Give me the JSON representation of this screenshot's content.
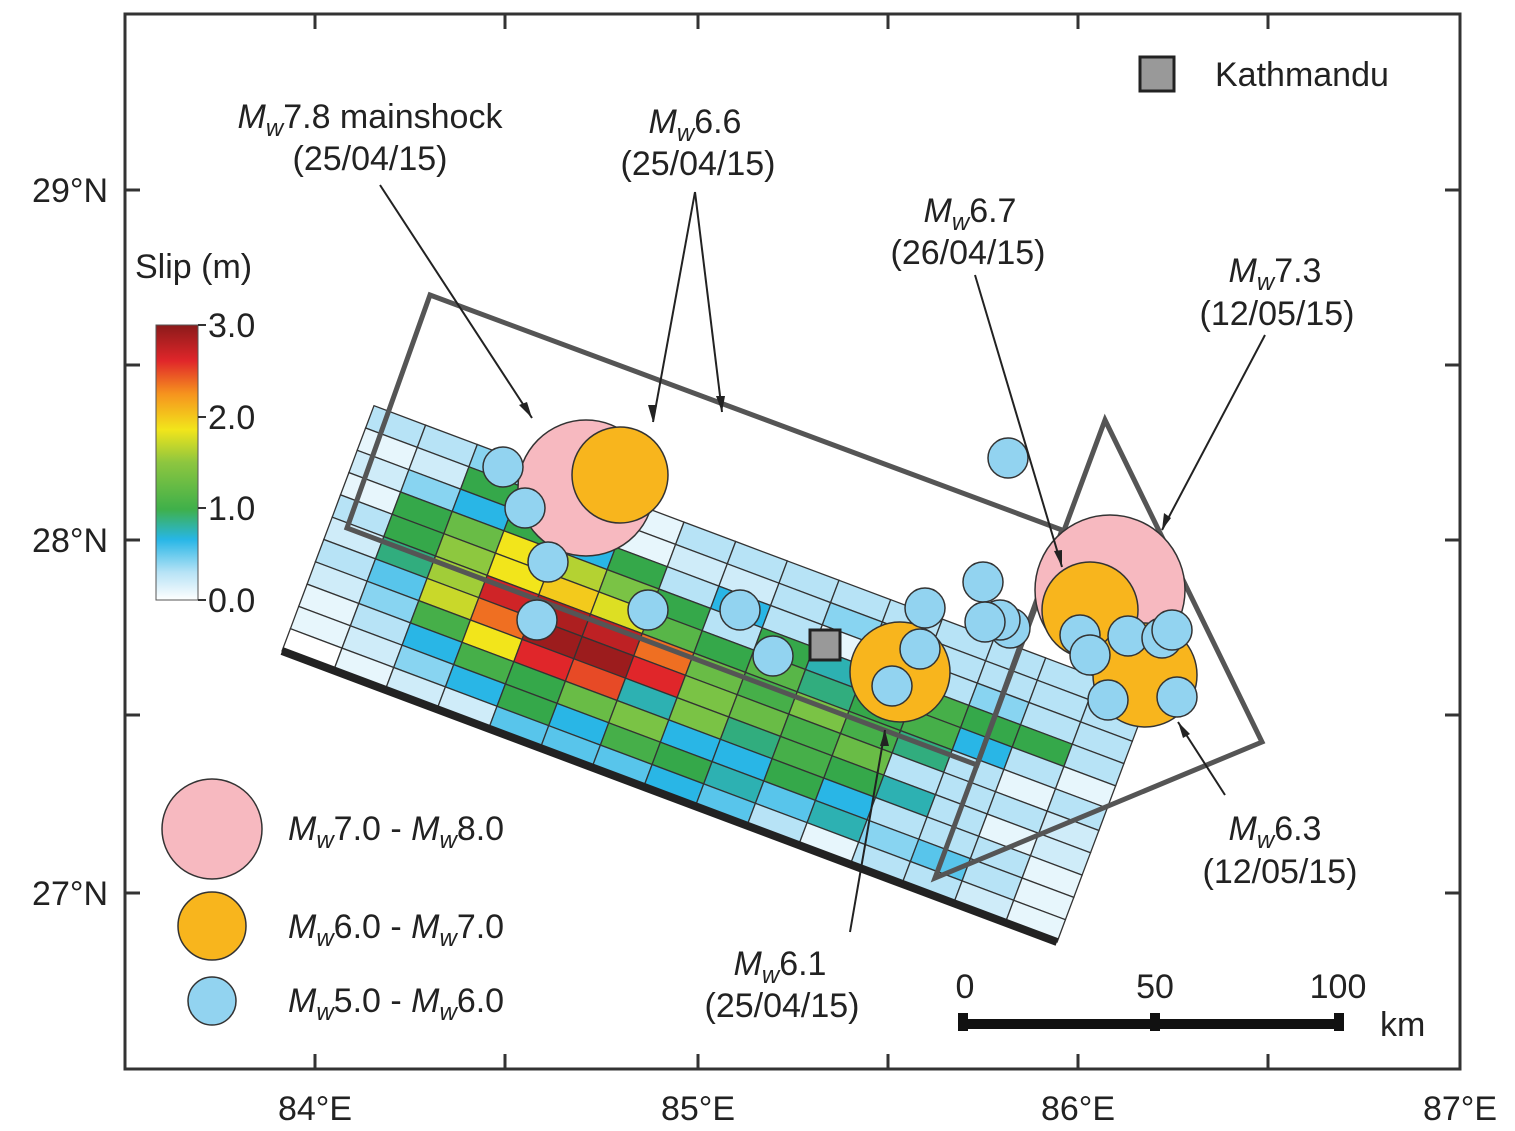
{
  "colors": {
    "pink": "#f7b9c0",
    "orange": "#f8b51d",
    "blue": "#92d3f0",
    "frame": "#333333",
    "outline": "#555555"
  },
  "axes": {
    "lon_ticks": [
      "84°E",
      "85°E",
      "86°E",
      "87°E"
    ],
    "lat_ticks": [
      "29°N",
      "28°N",
      "27°N"
    ]
  },
  "colorbar": {
    "title": "Slip (m)",
    "ticks": [
      "3.0",
      "2.0",
      "1.0",
      "0.0"
    ],
    "range_m": [
      0.0,
      3.0
    ]
  },
  "city": {
    "name": "Kathmandu",
    "lon": 85.32,
    "lat": 27.71
  },
  "events": [
    {
      "mag": "7.8",
      "suffix": " mainshock",
      "date": "(25/04/15)"
    },
    {
      "mag": "6.6",
      "suffix": "",
      "date": "(25/04/15)"
    },
    {
      "mag": "6.7",
      "suffix": "",
      "date": "(26/04/15)"
    },
    {
      "mag": "7.3",
      "suffix": "",
      "date": "(12/05/15)"
    },
    {
      "mag": "6.1",
      "suffix": "",
      "date": "(25/04/15)"
    },
    {
      "mag": "6.3",
      "suffix": "",
      "date": "(12/05/15)"
    }
  ],
  "legend": [
    {
      "from": "7.0",
      "to": "8.0",
      "size_class": "pink"
    },
    {
      "from": "6.0",
      "to": "7.0",
      "size_class": "orange"
    },
    {
      "from": "5.0",
      "to": "6.0",
      "size_class": "blue"
    }
  ],
  "mag_symbol": {
    "m": "M",
    "sub": "w"
  },
  "scale_bar": {
    "ticks": [
      "0",
      "50",
      "100"
    ],
    "unit": "km"
  },
  "slip_grid": [
    [
      0.3,
      0.3,
      0.4,
      0.4,
      0.4,
      0.1,
      0.3,
      0.3,
      0.3,
      0.3,
      0.3,
      0.3,
      0.3,
      0.3,
      0.2
    ],
    [
      0.1,
      0.2,
      0.9,
      0.3,
      0.4,
      0.1,
      0.2,
      0.2,
      0.3,
      0.4,
      0.4,
      0.3,
      0.3,
      0.3,
      0.3
    ],
    [
      0.2,
      0.4,
      0.6,
      0.9,
      0.6,
      0.9,
      0.3,
      0.6,
      0.3,
      0.1,
      0.3,
      0.3,
      0.4,
      0.3,
      0.3
    ],
    [
      0.1,
      0.9,
      1.2,
      1.9,
      1.6,
      1.3,
      0.9,
      0.3,
      0.9,
      0.7,
      0.8,
      1.0,
      0.9,
      0.9,
      0.3
    ],
    [
      0.3,
      0.9,
      1.4,
      1.9,
      2.0,
      1.8,
      1.1,
      0.9,
      1.1,
      0.8,
      0.9,
      1.0,
      0.6,
      0.3,
      0.1
    ],
    [
      0.2,
      0.8,
      1.5,
      2.6,
      2.8,
      2.7,
      2.3,
      1.2,
      1.0,
      1.3,
      1.0,
      0.8,
      0.3,
      0.1,
      0.3
    ],
    [
      0.3,
      0.5,
      1.7,
      2.3,
      2.9,
      2.9,
      2.5,
      1.3,
      1.2,
      1.0,
      1.2,
      0.3,
      0.3,
      0.3,
      0.2
    ],
    [
      0.2,
      0.4,
      1.0,
      1.9,
      2.5,
      2.4,
      0.7,
      1.3,
      0.8,
      1.0,
      0.9,
      0.7,
      0.3,
      0.1,
      0.2
    ],
    [
      0.1,
      0.3,
      0.6,
      1.0,
      0.9,
      1.2,
      1.3,
      0.6,
      0.6,
      0.9,
      0.6,
      0.3,
      0.3,
      0.3,
      0.1
    ],
    [
      0.1,
      0.2,
      0.4,
      0.6,
      0.9,
      0.6,
      1.0,
      0.9,
      0.7,
      0.5,
      0.7,
      0.4,
      0.5,
      0.3,
      0.1
    ],
    [
      0.0,
      0.1,
      0.2,
      0.2,
      0.5,
      0.5,
      0.5,
      0.6,
      0.5,
      0.3,
      0.1,
      0.3,
      0.3,
      0.2,
      0.1
    ]
  ]
}
